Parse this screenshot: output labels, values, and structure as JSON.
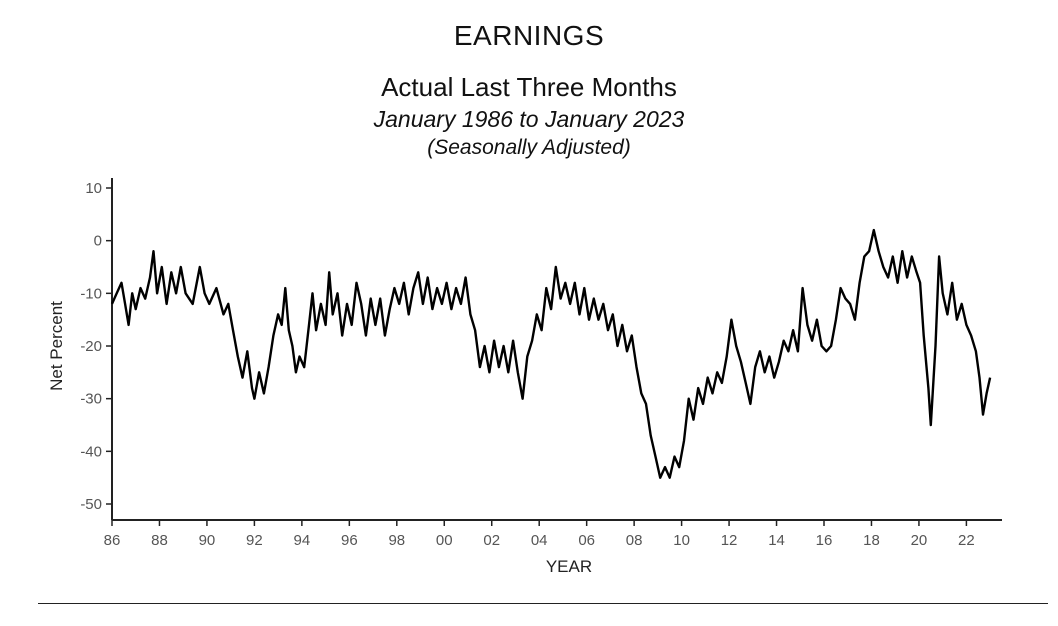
{
  "title": "EARNINGS",
  "subtitle": "Actual Last Three Months",
  "date_range": "January 1986 to January 2023",
  "note": "(Seasonally Adjusted)",
  "chart_data": {
    "type": "line",
    "title": "EARNINGS",
    "xlabel": "YEAR",
    "ylabel": "Net Percent",
    "xlim": [
      1986,
      2023.5
    ],
    "ylim": [
      -52,
      12
    ],
    "grid": false,
    "line_color": "#000000",
    "yticks": [
      10,
      0,
      -10,
      -20,
      -30,
      -40,
      -50
    ],
    "xtick_values": [
      1986,
      1988,
      1990,
      1992,
      1994,
      1996,
      1998,
      2000,
      2002,
      2004,
      2006,
      2008,
      2010,
      2012,
      2014,
      2016,
      2018,
      2020,
      2022
    ],
    "xtick_labels": [
      "86",
      "88",
      "90",
      "92",
      "94",
      "96",
      "98",
      "00",
      "02",
      "04",
      "06",
      "08",
      "10",
      "12",
      "14",
      "16",
      "18",
      "20",
      "22"
    ],
    "series": [
      {
        "points": [
          [
            1986.0,
            -12
          ],
          [
            1986.2,
            -10
          ],
          [
            1986.4,
            -8
          ],
          [
            1986.55,
            -12
          ],
          [
            1986.7,
            -16
          ],
          [
            1986.85,
            -10
          ],
          [
            1987.0,
            -13
          ],
          [
            1987.2,
            -9
          ],
          [
            1987.4,
            -11
          ],
          [
            1987.6,
            -7
          ],
          [
            1987.75,
            -2
          ],
          [
            1987.9,
            -10
          ],
          [
            1988.1,
            -5
          ],
          [
            1988.3,
            -12
          ],
          [
            1988.5,
            -6
          ],
          [
            1988.7,
            -10
          ],
          [
            1988.9,
            -5
          ],
          [
            1989.1,
            -10
          ],
          [
            1989.4,
            -12
          ],
          [
            1989.7,
            -5
          ],
          [
            1989.9,
            -10
          ],
          [
            1990.1,
            -12
          ],
          [
            1990.4,
            -9
          ],
          [
            1990.7,
            -14
          ],
          [
            1990.9,
            -12
          ],
          [
            1991.1,
            -17
          ],
          [
            1991.3,
            -22
          ],
          [
            1991.5,
            -26
          ],
          [
            1991.7,
            -21
          ],
          [
            1991.9,
            -28
          ],
          [
            1992.0,
            -30
          ],
          [
            1992.2,
            -25
          ],
          [
            1992.4,
            -29
          ],
          [
            1992.6,
            -24
          ],
          [
            1992.8,
            -18
          ],
          [
            1993.0,
            -14
          ],
          [
            1993.15,
            -16
          ],
          [
            1993.3,
            -9
          ],
          [
            1993.45,
            -17
          ],
          [
            1993.6,
            -20
          ],
          [
            1993.75,
            -25
          ],
          [
            1993.9,
            -22
          ],
          [
            1994.1,
            -24
          ],
          [
            1994.3,
            -16
          ],
          [
            1994.45,
            -10
          ],
          [
            1994.6,
            -17
          ],
          [
            1994.8,
            -12
          ],
          [
            1995.0,
            -16
          ],
          [
            1995.15,
            -6
          ],
          [
            1995.3,
            -14
          ],
          [
            1995.5,
            -10
          ],
          [
            1995.7,
            -18
          ],
          [
            1995.9,
            -12
          ],
          [
            1996.1,
            -16
          ],
          [
            1996.3,
            -8
          ],
          [
            1996.5,
            -12
          ],
          [
            1996.7,
            -18
          ],
          [
            1996.9,
            -11
          ],
          [
            1997.1,
            -16
          ],
          [
            1997.3,
            -11
          ],
          [
            1997.5,
            -18
          ],
          [
            1997.7,
            -13
          ],
          [
            1997.9,
            -9
          ],
          [
            1998.1,
            -12
          ],
          [
            1998.3,
            -8
          ],
          [
            1998.5,
            -14
          ],
          [
            1998.7,
            -9
          ],
          [
            1998.9,
            -6
          ],
          [
            1999.1,
            -12
          ],
          [
            1999.3,
            -7
          ],
          [
            1999.5,
            -13
          ],
          [
            1999.7,
            -9
          ],
          [
            1999.9,
            -12
          ],
          [
            2000.1,
            -8
          ],
          [
            2000.3,
            -13
          ],
          [
            2000.5,
            -9
          ],
          [
            2000.7,
            -12
          ],
          [
            2000.9,
            -7
          ],
          [
            2001.1,
            -14
          ],
          [
            2001.3,
            -17
          ],
          [
            2001.5,
            -24
          ],
          [
            2001.7,
            -20
          ],
          [
            2001.9,
            -25
          ],
          [
            2002.1,
            -19
          ],
          [
            2002.3,
            -24
          ],
          [
            2002.5,
            -20
          ],
          [
            2002.7,
            -25
          ],
          [
            2002.9,
            -19
          ],
          [
            2003.1,
            -25
          ],
          [
            2003.3,
            -30
          ],
          [
            2003.5,
            -22
          ],
          [
            2003.7,
            -19
          ],
          [
            2003.9,
            -14
          ],
          [
            2004.1,
            -17
          ],
          [
            2004.3,
            -9
          ],
          [
            2004.5,
            -13
          ],
          [
            2004.7,
            -5
          ],
          [
            2004.9,
            -11
          ],
          [
            2005.1,
            -8
          ],
          [
            2005.3,
            -12
          ],
          [
            2005.5,
            -8
          ],
          [
            2005.7,
            -14
          ],
          [
            2005.9,
            -9
          ],
          [
            2006.1,
            -15
          ],
          [
            2006.3,
            -11
          ],
          [
            2006.5,
            -15
          ],
          [
            2006.7,
            -12
          ],
          [
            2006.9,
            -17
          ],
          [
            2007.1,
            -14
          ],
          [
            2007.3,
            -20
          ],
          [
            2007.5,
            -16
          ],
          [
            2007.7,
            -21
          ],
          [
            2007.9,
            -18
          ],
          [
            2008.1,
            -24
          ],
          [
            2008.3,
            -29
          ],
          [
            2008.5,
            -31
          ],
          [
            2008.7,
            -37
          ],
          [
            2008.9,
            -41
          ],
          [
            2009.1,
            -45
          ],
          [
            2009.3,
            -43
          ],
          [
            2009.5,
            -45
          ],
          [
            2009.7,
            -41
          ],
          [
            2009.9,
            -43
          ],
          [
            2010.1,
            -38
          ],
          [
            2010.3,
            -30
          ],
          [
            2010.5,
            -34
          ],
          [
            2010.7,
            -28
          ],
          [
            2010.9,
            -31
          ],
          [
            2011.1,
            -26
          ],
          [
            2011.3,
            -29
          ],
          [
            2011.5,
            -25
          ],
          [
            2011.7,
            -27
          ],
          [
            2011.9,
            -22
          ],
          [
            2012.1,
            -15
          ],
          [
            2012.3,
            -20
          ],
          [
            2012.5,
            -23
          ],
          [
            2012.7,
            -27
          ],
          [
            2012.9,
            -31
          ],
          [
            2013.1,
            -24
          ],
          [
            2013.3,
            -21
          ],
          [
            2013.5,
            -25
          ],
          [
            2013.7,
            -22
          ],
          [
            2013.9,
            -26
          ],
          [
            2014.1,
            -23
          ],
          [
            2014.3,
            -19
          ],
          [
            2014.5,
            -21
          ],
          [
            2014.7,
            -17
          ],
          [
            2014.9,
            -21
          ],
          [
            2015.1,
            -9
          ],
          [
            2015.3,
            -16
          ],
          [
            2015.5,
            -19
          ],
          [
            2015.7,
            -15
          ],
          [
            2015.9,
            -20
          ],
          [
            2016.1,
            -21
          ],
          [
            2016.3,
            -20
          ],
          [
            2016.5,
            -15
          ],
          [
            2016.7,
            -9
          ],
          [
            2016.9,
            -11
          ],
          [
            2017.1,
            -12
          ],
          [
            2017.3,
            -15
          ],
          [
            2017.5,
            -8
          ],
          [
            2017.7,
            -3
          ],
          [
            2017.9,
            -2
          ],
          [
            2018.1,
            2
          ],
          [
            2018.3,
            -2
          ],
          [
            2018.5,
            -5
          ],
          [
            2018.7,
            -7
          ],
          [
            2018.9,
            -3
          ],
          [
            2019.1,
            -8
          ],
          [
            2019.3,
            -2
          ],
          [
            2019.5,
            -7
          ],
          [
            2019.7,
            -3
          ],
          [
            2019.9,
            -6
          ],
          [
            2020.05,
            -8
          ],
          [
            2020.2,
            -18
          ],
          [
            2020.4,
            -28
          ],
          [
            2020.5,
            -35
          ],
          [
            2020.7,
            -20
          ],
          [
            2020.85,
            -3
          ],
          [
            2021.0,
            -10
          ],
          [
            2021.2,
            -14
          ],
          [
            2021.4,
            -8
          ],
          [
            2021.6,
            -15
          ],
          [
            2021.8,
            -12
          ],
          [
            2022.0,
            -16
          ],
          [
            2022.2,
            -18
          ],
          [
            2022.4,
            -21
          ],
          [
            2022.55,
            -26
          ],
          [
            2022.7,
            -33
          ],
          [
            2022.85,
            -29
          ],
          [
            2023.0,
            -26
          ]
        ]
      }
    ]
  }
}
